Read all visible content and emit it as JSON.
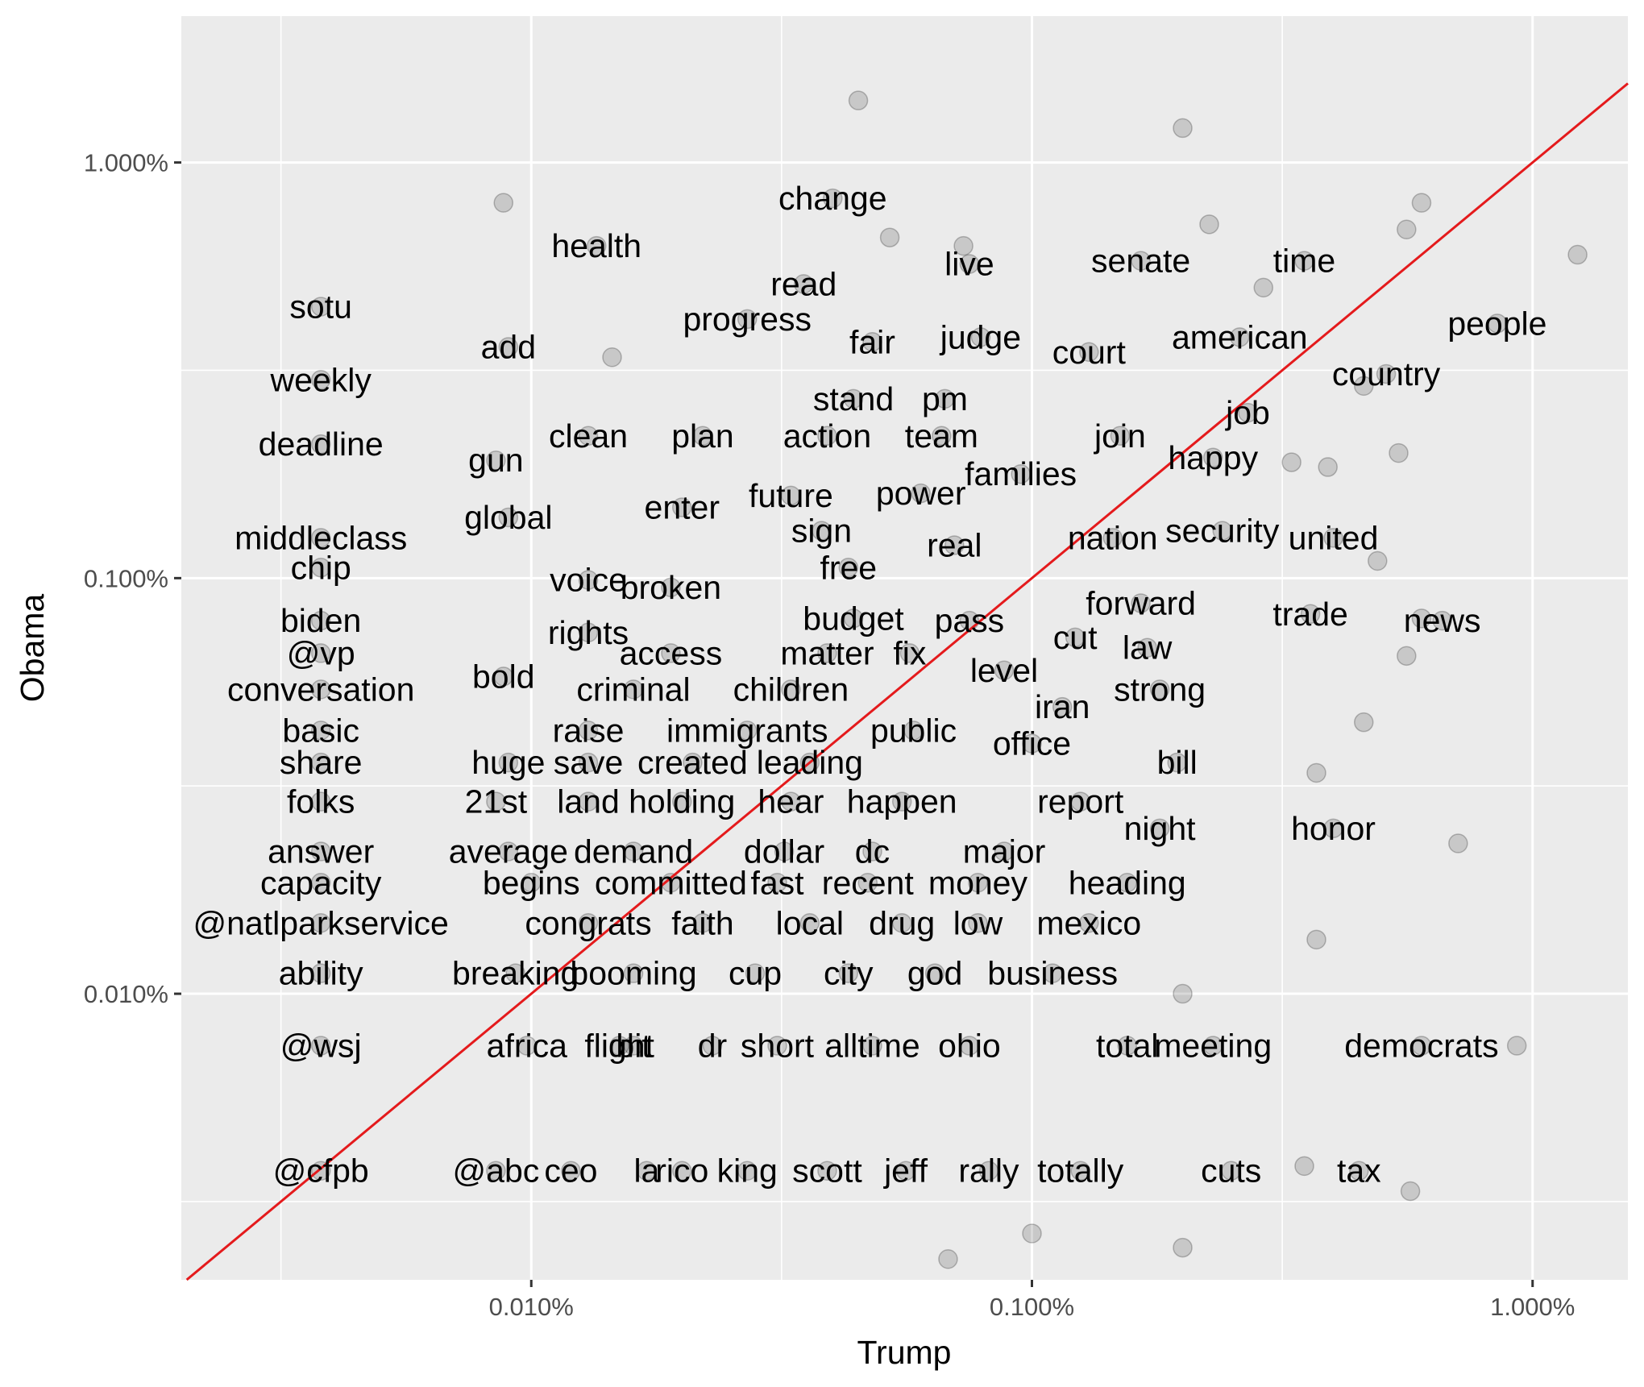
{
  "chart_data": {
    "type": "scatter",
    "xlabel": "Trump",
    "ylabel": "Obama",
    "scale": "log10",
    "xlim": [
      2e-05,
      0.0155
    ],
    "ylim": [
      2.05e-05,
      0.0225
    ],
    "x_ticks": [
      {
        "value": 0.0001,
        "label": "0.010%"
      },
      {
        "value": 0.001,
        "label": "0.100%"
      },
      {
        "value": 0.01,
        "label": "1.000%"
      }
    ],
    "y_ticks": [
      {
        "value": 0.0001,
        "label": "0.010%"
      },
      {
        "value": 0.001,
        "label": "0.100%"
      },
      {
        "value": 0.01,
        "label": "1.000%"
      }
    ],
    "grid": true,
    "reference_line": {
      "slope": 1,
      "intercept": 0,
      "color": "#e41a1c"
    },
    "point_color": "#000000",
    "point_opacity": 0.15,
    "words": [
      {
        "word": "change",
        "x": 0.0004,
        "y": 0.0082
      },
      {
        "word": "health",
        "x": 0.000135,
        "y": 0.0063
      },
      {
        "word": "live",
        "x": 0.00075,
        "y": 0.0057
      },
      {
        "word": "senate",
        "x": 0.00165,
        "y": 0.0058
      },
      {
        "word": "time",
        "x": 0.0035,
        "y": 0.0058
      },
      {
        "word": "read",
        "x": 0.00035,
        "y": 0.0051
      },
      {
        "word": "sotu",
        "x": 3.8e-05,
        "y": 0.0045
      },
      {
        "word": "people",
        "x": 0.0085,
        "y": 0.0041
      },
      {
        "word": "progress",
        "x": 0.00027,
        "y": 0.0042
      },
      {
        "word": "add",
        "x": 9e-05,
        "y": 0.0036
      },
      {
        "word": "fair",
        "x": 0.00048,
        "y": 0.0037
      },
      {
        "word": "judge",
        "x": 0.00079,
        "y": 0.0038
      },
      {
        "word": "court",
        "x": 0.0013,
        "y": 0.0035
      },
      {
        "word": "american",
        "x": 0.0026,
        "y": 0.0038
      },
      {
        "word": "weekly",
        "x": 3.8e-05,
        "y": 0.003
      },
      {
        "word": "country",
        "x": 0.0051,
        "y": 0.0031
      },
      {
        "word": "stand",
        "x": 0.00044,
        "y": 0.0027
      },
      {
        "word": "pm",
        "x": 0.00067,
        "y": 0.0027
      },
      {
        "word": "job",
        "x": 0.0027,
        "y": 0.0025
      },
      {
        "word": "deadline",
        "x": 3.8e-05,
        "y": 0.0021
      },
      {
        "word": "clean",
        "x": 0.00013,
        "y": 0.0022
      },
      {
        "word": "plan",
        "x": 0.00022,
        "y": 0.0022
      },
      {
        "word": "action",
        "x": 0.00039,
        "y": 0.0022
      },
      {
        "word": "team",
        "x": 0.00066,
        "y": 0.0022
      },
      {
        "word": "join",
        "x": 0.0015,
        "y": 0.0022
      },
      {
        "word": "happy",
        "x": 0.0023,
        "y": 0.00195
      },
      {
        "word": "gun",
        "x": 8.5e-05,
        "y": 0.00192
      },
      {
        "word": "families",
        "x": 0.00095,
        "y": 0.00178
      },
      {
        "word": "power",
        "x": 0.0006,
        "y": 0.0016
      },
      {
        "word": "future",
        "x": 0.00033,
        "y": 0.00158
      },
      {
        "word": "enter",
        "x": 0.0002,
        "y": 0.00148
      },
      {
        "word": "global",
        "x": 9e-05,
        "y": 0.0014
      },
      {
        "word": "sign",
        "x": 0.00038,
        "y": 0.0013
      },
      {
        "word": "middleclass",
        "x": 3.8e-05,
        "y": 0.00125
      },
      {
        "word": "real",
        "x": 0.0007,
        "y": 0.0012
      },
      {
        "word": "nation",
        "x": 0.00145,
        "y": 0.00125
      },
      {
        "word": "security",
        "x": 0.0024,
        "y": 0.0013
      },
      {
        "word": "united",
        "x": 0.004,
        "y": 0.00125
      },
      {
        "word": "chip",
        "x": 3.8e-05,
        "y": 0.00106
      },
      {
        "word": "free",
        "x": 0.00043,
        "y": 0.00106
      },
      {
        "word": "voice",
        "x": 0.00013,
        "y": 0.00099
      },
      {
        "word": "broken",
        "x": 0.00019,
        "y": 0.00095
      },
      {
        "word": "forward",
        "x": 0.00165,
        "y": 0.00087
      },
      {
        "word": "trade",
        "x": 0.0036,
        "y": 0.00082
      },
      {
        "word": "biden",
        "x": 3.8e-05,
        "y": 0.00079
      },
      {
        "word": "budget",
        "x": 0.00044,
        "y": 0.0008
      },
      {
        "word": "pass",
        "x": 0.00075,
        "y": 0.00079
      },
      {
        "word": "news",
        "x": 0.0066,
        "y": 0.00079
      },
      {
        "word": "rights",
        "x": 0.00013,
        "y": 0.00074
      },
      {
        "word": "cut",
        "x": 0.00122,
        "y": 0.00072
      },
      {
        "word": "law",
        "x": 0.0017,
        "y": 0.00068
      },
      {
        "word": "@vp",
        "x": 3.8e-05,
        "y": 0.00066
      },
      {
        "word": "access",
        "x": 0.00019,
        "y": 0.00066
      },
      {
        "word": "matter",
        "x": 0.00039,
        "y": 0.00066
      },
      {
        "word": "fix",
        "x": 0.00057,
        "y": 0.00066
      },
      {
        "word": "level",
        "x": 0.00088,
        "y": 0.0006
      },
      {
        "word": "bold",
        "x": 8.8e-05,
        "y": 0.00058
      },
      {
        "word": "conversation",
        "x": 3.8e-05,
        "y": 0.00054
      },
      {
        "word": "criminal",
        "x": 0.00016,
        "y": 0.00054
      },
      {
        "word": "children",
        "x": 0.00033,
        "y": 0.00054
      },
      {
        "word": "strong",
        "x": 0.0018,
        "y": 0.00054
      },
      {
        "word": "iran",
        "x": 0.00115,
        "y": 0.00049
      },
      {
        "word": "basic",
        "x": 3.8e-05,
        "y": 0.00043
      },
      {
        "word": "raise",
        "x": 0.00013,
        "y": 0.00043
      },
      {
        "word": "immigrants",
        "x": 0.00027,
        "y": 0.00043
      },
      {
        "word": "public",
        "x": 0.00058,
        "y": 0.00043
      },
      {
        "word": "office",
        "x": 0.001,
        "y": 0.0004
      },
      {
        "word": "share",
        "x": 3.8e-05,
        "y": 0.00036
      },
      {
        "word": "huge",
        "x": 9e-05,
        "y": 0.00036
      },
      {
        "word": "save",
        "x": 0.00013,
        "y": 0.00036
      },
      {
        "word": "created",
        "x": 0.00021,
        "y": 0.00036
      },
      {
        "word": "leading",
        "x": 0.00036,
        "y": 0.00036
      },
      {
        "word": "bill",
        "x": 0.00195,
        "y": 0.00036
      },
      {
        "word": "folks",
        "x": 3.8e-05,
        "y": 0.00029
      },
      {
        "word": "21st",
        "x": 8.5e-05,
        "y": 0.00029
      },
      {
        "word": "land",
        "x": 0.00013,
        "y": 0.00029
      },
      {
        "word": "holding",
        "x": 0.0002,
        "y": 0.00029
      },
      {
        "word": "hear",
        "x": 0.00033,
        "y": 0.00029
      },
      {
        "word": "happen",
        "x": 0.00055,
        "y": 0.00029
      },
      {
        "word": "report",
        "x": 0.00125,
        "y": 0.00029
      },
      {
        "word": "night",
        "x": 0.0018,
        "y": 0.00025
      },
      {
        "word": "honor",
        "x": 0.004,
        "y": 0.00025
      },
      {
        "word": "answer",
        "x": 3.8e-05,
        "y": 0.00022
      },
      {
        "word": "average",
        "x": 9e-05,
        "y": 0.00022
      },
      {
        "word": "demand",
        "x": 0.00016,
        "y": 0.00022
      },
      {
        "word": "dollar",
        "x": 0.00032,
        "y": 0.00022
      },
      {
        "word": "dc",
        "x": 0.00048,
        "y": 0.00022
      },
      {
        "word": "major",
        "x": 0.00088,
        "y": 0.00022
      },
      {
        "word": "capacity",
        "x": 3.8e-05,
        "y": 0.000185
      },
      {
        "word": "begins",
        "x": 0.0001,
        "y": 0.000185
      },
      {
        "word": "committed",
        "x": 0.00019,
        "y": 0.000185
      },
      {
        "word": "fast",
        "x": 0.00031,
        "y": 0.000185
      },
      {
        "word": "recent",
        "x": 0.00047,
        "y": 0.000185
      },
      {
        "word": "money",
        "x": 0.00078,
        "y": 0.000185
      },
      {
        "word": "heading",
        "x": 0.00155,
        "y": 0.000185
      },
      {
        "word": "@natlparkservice",
        "x": 3.8e-05,
        "y": 0.000148
      },
      {
        "word": "congrats",
        "x": 0.00013,
        "y": 0.000148
      },
      {
        "word": "faith",
        "x": 0.00022,
        "y": 0.000148
      },
      {
        "word": "local",
        "x": 0.00036,
        "y": 0.000148
      },
      {
        "word": "drug",
        "x": 0.00055,
        "y": 0.000148
      },
      {
        "word": "low",
        "x": 0.00078,
        "y": 0.000148
      },
      {
        "word": "mexico",
        "x": 0.0013,
        "y": 0.000148
      },
      {
        "word": "ability",
        "x": 3.8e-05,
        "y": 0.000112
      },
      {
        "word": "breaking",
        "x": 9.3e-05,
        "y": 0.000112
      },
      {
        "word": "booming",
        "x": 0.00016,
        "y": 0.000112
      },
      {
        "word": "cup",
        "x": 0.00028,
        "y": 0.000112
      },
      {
        "word": "city",
        "x": 0.00043,
        "y": 0.000112
      },
      {
        "word": "god",
        "x": 0.00064,
        "y": 0.000112
      },
      {
        "word": "business",
        "x": 0.0011,
        "y": 0.000112
      },
      {
        "word": "@wsj",
        "x": 3.8e-05,
        "y": 7.5e-05
      },
      {
        "word": "africa",
        "x": 9.8e-05,
        "y": 7.5e-05
      },
      {
        "word": "flight",
        "x": 0.00015,
        "y": 7.5e-05
      },
      {
        "word": "bit",
        "x": 0.00016,
        "y": 7.5e-05
      },
      {
        "word": "dr",
        "x": 0.00023,
        "y": 7.5e-05
      },
      {
        "word": "short",
        "x": 0.00031,
        "y": 7.5e-05
      },
      {
        "word": "alltime",
        "x": 0.00048,
        "y": 7.5e-05
      },
      {
        "word": "ohio",
        "x": 0.00075,
        "y": 7.5e-05
      },
      {
        "word": "total",
        "x": 0.00155,
        "y": 7.5e-05
      },
      {
        "word": "meeting",
        "x": 0.0023,
        "y": 7.5e-05
      },
      {
        "word": "democrats",
        "x": 0.006,
        "y": 7.5e-05
      },
      {
        "word": "@cfpb",
        "x": 3.8e-05,
        "y": 3.75e-05
      },
      {
        "word": "@abc",
        "x": 8.5e-05,
        "y": 3.75e-05
      },
      {
        "word": "ceo",
        "x": 0.00012,
        "y": 3.75e-05
      },
      {
        "word": "la",
        "x": 0.00017,
        "y": 3.75e-05
      },
      {
        "word": "rico",
        "x": 0.0002,
        "y": 3.75e-05
      },
      {
        "word": "king",
        "x": 0.00027,
        "y": 3.75e-05
      },
      {
        "word": "scott",
        "x": 0.00039,
        "y": 3.75e-05
      },
      {
        "word": "jeff",
        "x": 0.00056,
        "y": 3.75e-05
      },
      {
        "word": "rally",
        "x": 0.00082,
        "y": 3.75e-05
      },
      {
        "word": "totally",
        "x": 0.00125,
        "y": 3.75e-05
      },
      {
        "word": "cuts",
        "x": 0.0025,
        "y": 3.75e-05
      },
      {
        "word": "tax",
        "x": 0.0045,
        "y": 3.75e-05
      }
    ],
    "points_visible_only": [
      {
        "x": 0.00045,
        "y": 0.0141
      },
      {
        "x": 0.002,
        "y": 0.0121
      },
      {
        "x": 8.8e-05,
        "y": 0.008
      },
      {
        "x": 0.0123,
        "y": 0.006
      },
      {
        "x": 0.006,
        "y": 0.008
      },
      {
        "x": 0.0056,
        "y": 0.0069
      },
      {
        "x": 0.00226,
        "y": 0.0071
      },
      {
        "x": 0.00052,
        "y": 0.0066
      },
      {
        "x": 0.00073,
        "y": 0.0063
      },
      {
        "x": 0.000145,
        "y": 0.0034
      },
      {
        "x": 0.0029,
        "y": 0.005
      },
      {
        "x": 0.0033,
        "y": 0.0019
      },
      {
        "x": 0.0054,
        "y": 0.002
      },
      {
        "x": 0.0046,
        "y": 0.0029
      },
      {
        "x": 0.0071,
        "y": 0.00023
      },
      {
        "x": 0.0037,
        "y": 0.000135
      },
      {
        "x": 0.0046,
        "y": 0.00045
      },
      {
        "x": 0.0056,
        "y": 0.00065
      },
      {
        "x": 0.006,
        "y": 0.0008
      },
      {
        "x": 0.0093,
        "y": 7.5e-05
      },
      {
        "x": 0.0057,
        "y": 3.35e-05
      },
      {
        "x": 0.002,
        "y": 2.45e-05
      },
      {
        "x": 0.00068,
        "y": 2.3e-05
      },
      {
        "x": 0.001,
        "y": 2.65e-05
      },
      {
        "x": 0.0035,
        "y": 3.85e-05
      },
      {
        "x": 0.002,
        "y": 0.0001
      },
      {
        "x": 0.0037,
        "y": 0.00034
      },
      {
        "x": 0.0039,
        "y": 0.00185
      },
      {
        "x": 0.0049,
        "y": 0.0011
      }
    ]
  }
}
